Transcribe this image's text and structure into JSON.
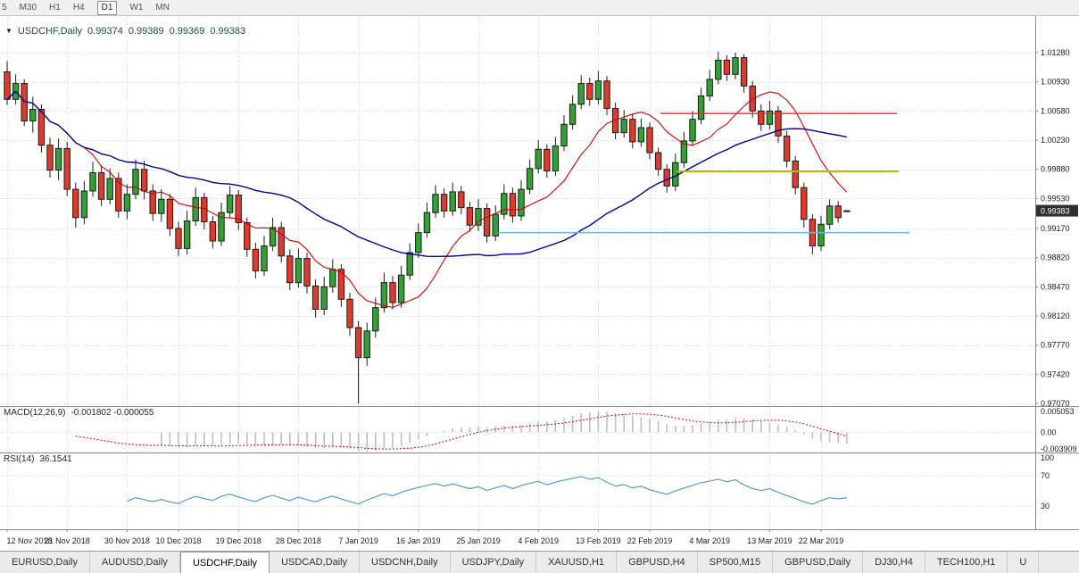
{
  "timeframe_bar": {
    "items": [
      "5",
      "M30",
      "H1",
      "H4",
      "D1",
      "W1",
      "MN"
    ],
    "selected": "D1"
  },
  "chart_header": {
    "symbol": "USDCHF,Daily",
    "open": "0.99374",
    "high": "0.99389",
    "low": "0.99369",
    "close": "0.99383"
  },
  "macd_panel": {
    "name": "MACD(12,26,9)",
    "values": "-0.001802 -0.000055",
    "axis_labels": [
      "0.005053",
      "0.00",
      "-0.003909"
    ],
    "max": 0.005053,
    "min": -0.003909
  },
  "rsi_panel": {
    "name": "RSI(14)",
    "value": "36.1541",
    "axis_labels": [
      "100",
      "70",
      "30"
    ],
    "levels": [
      70,
      30
    ]
  },
  "price_axis": {
    "top_value": 1.0128,
    "bottom_value": 0.9707,
    "current_price": "0.99383",
    "labels": [
      "1.01280",
      "1.00930",
      "1.00580",
      "1.00230",
      "0.99880",
      "0.99530",
      "0.99170",
      "0.98820",
      "0.98470",
      "0.98120",
      "0.97770",
      "0.97420",
      "0.97070"
    ]
  },
  "date_axis": {
    "ticks": [
      {
        "i": 0,
        "label": "12 Nov 2018"
      },
      {
        "i": 7,
        "label": "21 Nov 2018"
      },
      {
        "i": 14,
        "label": "30 Nov 2018"
      },
      {
        "i": 20,
        "label": "10 Dec 2018"
      },
      {
        "i": 27,
        "label": "19 Dec 2018"
      },
      {
        "i": 34,
        "label": "28 Dec 2018"
      },
      {
        "i": 41,
        "label": "7 Jan 2019"
      },
      {
        "i": 48,
        "label": "16 Jan 2019"
      },
      {
        "i": 55,
        "label": "25 Jan 2019"
      },
      {
        "i": 62,
        "label": "4 Feb 2019"
      },
      {
        "i": 69,
        "label": "13 Feb 2019"
      },
      {
        "i": 75,
        "label": "22 Feb 2019"
      },
      {
        "i": 82,
        "label": "4 Mar 2019"
      },
      {
        "i": 89,
        "label": "13 Mar 2019"
      },
      {
        "i": 95,
        "label": "22 Mar 2019"
      }
    ]
  },
  "bottom_tabs": {
    "tabs": [
      "EURUSD,Daily",
      "AUDUSD,Daily",
      "USDCHF,Daily",
      "USDCAD,Daily",
      "USDCNH,Daily",
      "USDJPY,Daily",
      "XAUUSD,H1",
      "GBPUSD,H4",
      "SP500,M15",
      "GBPUSD,Daily",
      "DJ30,H4",
      "TECH100,H1",
      "U"
    ],
    "selected": "USDCHF,Daily"
  },
  "colors": {
    "bull": "#32a032",
    "bear": "#df3a2b",
    "outline": "#1b1b1b",
    "ma_fast": "#cc0000",
    "ma_slow": "#00008b",
    "macd_hist": "#bfbfbf",
    "macd_signal": "#cc0000",
    "rsi": "#4a90c8",
    "grid": "#d4d4d4",
    "axis_text": "#1a1a1a",
    "badge_bg": "#2f2f2f",
    "badge_text": "#ffffff"
  },
  "chart_data": {
    "type": "candlestick",
    "symbol": "USDCHF",
    "timeframe": "Daily",
    "title": "USDCHF,Daily",
    "ylim": [
      0.9707,
      1.0128
    ],
    "indicators": {
      "moving_averages": [
        {
          "type": "sma",
          "period": 10,
          "color": "#cc0000"
        },
        {
          "type": "sma",
          "period": 34,
          "color": "#00008b"
        }
      ],
      "macd": {
        "fast": 12,
        "slow": 26,
        "signal": 9,
        "current_main": -0.001802,
        "current_signal": -5.5e-05
      },
      "rsi": {
        "period": 14,
        "current": 36.1541,
        "levels": [
          70,
          30
        ]
      }
    },
    "hlines": [
      {
        "name": "resistance-line-red",
        "price": 1.0055,
        "x1": 740,
        "x2": 1005,
        "color": "#ff2222",
        "width": 1.4
      },
      {
        "name": "support-line-yellow",
        "price": 0.99855,
        "x1": 758,
        "x2": 1007,
        "color": "#b0c000",
        "width": 2
      },
      {
        "name": "support-line-blue",
        "price": 0.9912,
        "x1": 558,
        "x2": 1019,
        "color": "#6fb3e0",
        "width": 1.4
      }
    ],
    "candles": [
      [
        1.0105,
        1.0118,
        1.0065,
        1.0072
      ],
      [
        1.0072,
        1.0102,
        1.0066,
        1.0091
      ],
      [
        1.0091,
        1.0096,
        1.004,
        1.0046
      ],
      [
        1.0046,
        1.0075,
        1.0032,
        1.006
      ],
      [
        1.006,
        1.0066,
        1.0008,
        1.0017
      ],
      [
        1.0017,
        1.0026,
        0.9978,
        0.9987
      ],
      [
        0.9987,
        1.0025,
        0.9975,
        1.0013
      ],
      [
        1.0013,
        1.0021,
        0.9956,
        0.9964
      ],
      [
        0.9964,
        0.9972,
        0.9918,
        0.993
      ],
      [
        0.993,
        0.9974,
        0.9922,
        0.9962
      ],
      [
        0.9962,
        0.9997,
        0.9955,
        0.9984
      ],
      [
        0.9984,
        0.9993,
        0.9944,
        0.9952
      ],
      [
        0.9952,
        0.9989,
        0.9946,
        0.9977
      ],
      [
        0.9977,
        0.9984,
        0.993,
        0.9938
      ],
      [
        0.9938,
        0.997,
        0.9928,
        0.9958
      ],
      [
        0.9958,
        1.0,
        0.9952,
        0.9988
      ],
      [
        0.9988,
        0.9998,
        0.9952,
        0.9962
      ],
      [
        0.9962,
        0.997,
        0.9926,
        0.9935
      ],
      [
        0.9935,
        0.9964,
        0.9925,
        0.9952
      ],
      [
        0.9952,
        0.9958,
        0.9908,
        0.9917
      ],
      [
        0.9917,
        0.9925,
        0.9884,
        0.9893
      ],
      [
        0.9893,
        0.9938,
        0.9886,
        0.9926
      ],
      [
        0.9926,
        0.9966,
        0.992,
        0.9954
      ],
      [
        0.9954,
        0.996,
        0.9916,
        0.9925
      ],
      [
        0.9925,
        0.9932,
        0.9893,
        0.9902
      ],
      [
        0.9902,
        0.9948,
        0.9896,
        0.9936
      ],
      [
        0.9936,
        0.9968,
        0.993,
        0.9957
      ],
      [
        0.9957,
        0.9963,
        0.9915,
        0.9924
      ],
      [
        0.9924,
        0.993,
        0.9883,
        0.9892
      ],
      [
        0.9892,
        0.99,
        0.9857,
        0.9866
      ],
      [
        0.9866,
        0.9908,
        0.986,
        0.9896
      ],
      [
        0.9896,
        0.993,
        0.989,
        0.9918
      ],
      [
        0.9918,
        0.9925,
        0.9876,
        0.9884
      ],
      [
        0.9884,
        0.9892,
        0.9843,
        0.9852
      ],
      [
        0.9852,
        0.9893,
        0.9846,
        0.9881
      ],
      [
        0.9881,
        0.9888,
        0.9839,
        0.9848
      ],
      [
        0.9848,
        0.9856,
        0.981,
        0.982
      ],
      [
        0.982,
        0.9859,
        0.9813,
        0.9847
      ],
      [
        0.9847,
        0.988,
        0.984,
        0.9868
      ],
      [
        0.9868,
        0.9874,
        0.9823,
        0.9832
      ],
      [
        0.9832,
        0.984,
        0.9788,
        0.9798
      ],
      [
        0.9798,
        0.9806,
        0.9707,
        0.9762
      ],
      [
        0.9762,
        0.9804,
        0.9752,
        0.9794
      ],
      [
        0.9794,
        0.9834,
        0.9786,
        0.9822
      ],
      [
        0.9822,
        0.9864,
        0.9816,
        0.9852
      ],
      [
        0.9852,
        0.986,
        0.982,
        0.9828
      ],
      [
        0.9828,
        0.9872,
        0.9822,
        0.9861
      ],
      [
        0.9861,
        0.9899,
        0.9855,
        0.9888
      ],
      [
        0.9888,
        0.9923,
        0.9882,
        0.9912
      ],
      [
        0.9912,
        0.9948,
        0.9906,
        0.9936
      ],
      [
        0.9936,
        0.9969,
        0.993,
        0.9958
      ],
      [
        0.9958,
        0.9965,
        0.993,
        0.9938
      ],
      [
        0.9938,
        0.9972,
        0.9932,
        0.9961
      ],
      [
        0.9961,
        0.9968,
        0.9934,
        0.9942
      ],
      [
        0.9942,
        0.9949,
        0.9913,
        0.9921
      ],
      [
        0.9921,
        0.9952,
        0.9914,
        0.9941
      ],
      [
        0.9941,
        0.9947,
        0.99,
        0.9908
      ],
      [
        0.9908,
        0.9945,
        0.9902,
        0.9934
      ],
      [
        0.9934,
        0.997,
        0.9928,
        0.9959
      ],
      [
        0.9959,
        0.9966,
        0.9924,
        0.9932
      ],
      [
        0.9932,
        0.9975,
        0.9926,
        0.9964
      ],
      [
        0.9964,
        1.0,
        0.9958,
        0.9989
      ],
      [
        0.9989,
        1.0023,
        0.9983,
        1.0012
      ],
      [
        1.0012,
        1.0018,
        0.9978,
        0.9986
      ],
      [
        0.9986,
        1.0027,
        0.998,
        1.0016
      ],
      [
        1.0016,
        1.0053,
        1.001,
        1.0042
      ],
      [
        1.0042,
        1.0077,
        1.0036,
        1.0066
      ],
      [
        1.0066,
        1.0101,
        1.006,
        1.0091
      ],
      [
        1.0091,
        1.0098,
        1.0064,
        1.0072
      ],
      [
        1.0072,
        1.0106,
        1.0066,
        1.0094
      ],
      [
        1.0094,
        1.01,
        1.0053,
        1.0061
      ],
      [
        1.0061,
        1.0068,
        1.0024,
        1.0032
      ],
      [
        1.0032,
        1.0059,
        1.0026,
        1.0048
      ],
      [
        1.0048,
        1.0054,
        1.0013,
        1.0021
      ],
      [
        1.0021,
        1.0049,
        1.0015,
        1.0038
      ],
      [
        1.0038,
        1.0044,
        1.0,
        1.0008
      ],
      [
        1.0008,
        1.0014,
        0.998,
        0.9988
      ],
      [
        0.9988,
        0.9994,
        0.996,
        0.9968
      ],
      [
        0.9968,
        1.0007,
        0.9962,
        0.9996
      ],
      [
        0.9996,
        1.0033,
        0.999,
        1.0022
      ],
      [
        1.0022,
        1.0058,
        1.0016,
        1.0048
      ],
      [
        1.0048,
        1.0086,
        1.0042,
        1.0076
      ],
      [
        1.0076,
        1.0107,
        1.007,
        1.0096
      ],
      [
        1.0096,
        1.0129,
        1.009,
        1.0119
      ],
      [
        1.0119,
        1.0125,
        1.0094,
        1.0102
      ],
      [
        1.0102,
        1.0128,
        1.0096,
        1.0122
      ],
      [
        1.0122,
        1.0126,
        1.008,
        1.0088
      ],
      [
        1.0088,
        1.0094,
        1.005,
        1.0058
      ],
      [
        1.0058,
        1.0066,
        1.0034,
        1.0042
      ],
      [
        1.0042,
        1.007,
        1.0036,
        1.0058
      ],
      [
        1.0058,
        1.0064,
        1.002,
        1.0028
      ],
      [
        1.0028,
        1.0034,
        0.999,
        0.9998
      ],
      [
        0.9998,
        1.0004,
        0.9958,
        0.9966
      ],
      [
        0.9966,
        0.9972,
        0.9918,
        0.9928
      ],
      [
        0.9928,
        0.9934,
        0.9886,
        0.9896
      ],
      [
        0.9896,
        0.9932,
        0.989,
        0.9922
      ],
      [
        0.9922,
        0.9952,
        0.9916,
        0.9944
      ],
      [
        0.9944,
        0.995,
        0.9924,
        0.993
      ],
      [
        0.99374,
        0.99389,
        0.99369,
        0.99383
      ]
    ]
  }
}
